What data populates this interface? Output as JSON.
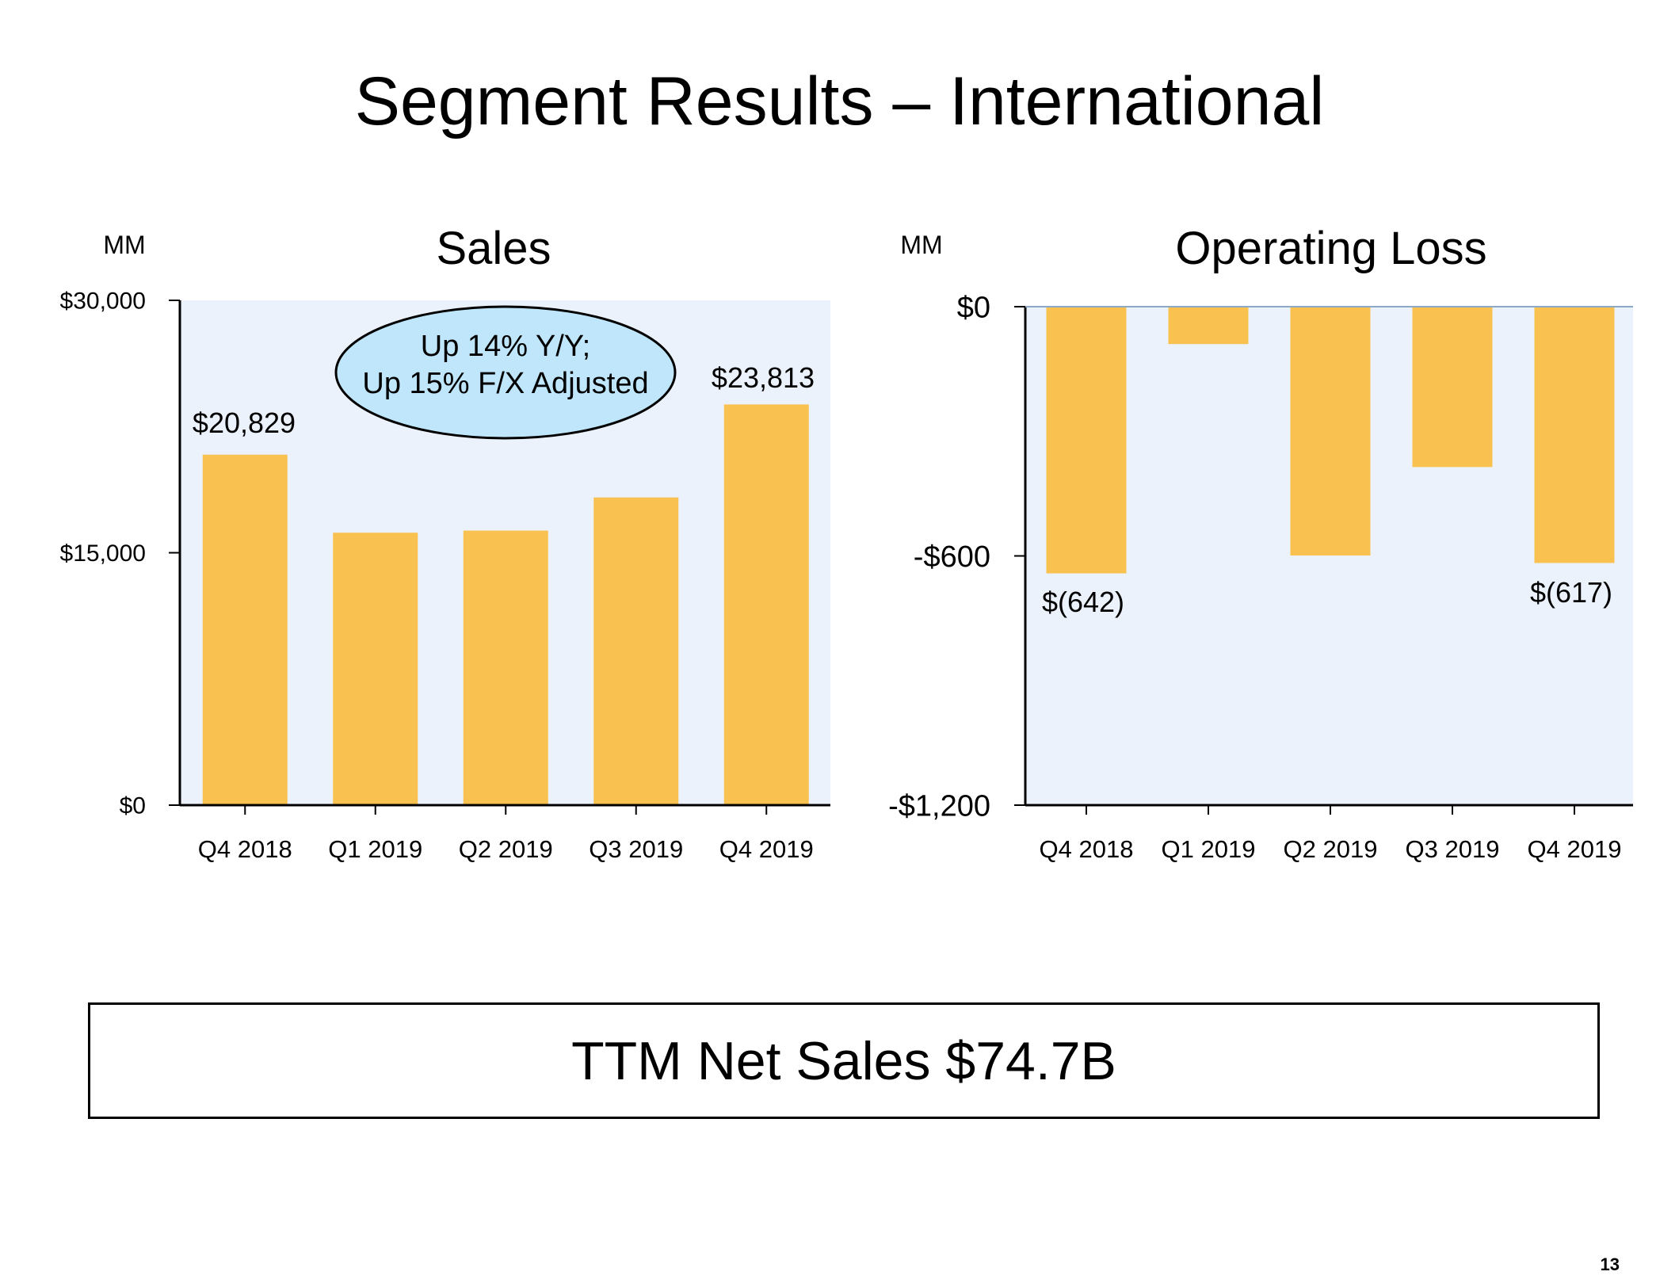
{
  "slide": {
    "title": "Segment Results – International",
    "callout": [
      "Up 14% Y/Y;",
      "Up 15% F/X Adjusted"
    ],
    "summary": "TTM Net Sales $74.7B",
    "page_number": "13"
  },
  "colors": {
    "bar": "#F9C150",
    "plot_background": "#EBF2FC",
    "callout_fill": "#BFE6FB",
    "axis": "#000000"
  },
  "chart_data": [
    {
      "type": "bar",
      "title": "Sales",
      "unit_label": "MM",
      "categories": [
        "Q4 2018",
        "Q1 2019",
        "Q2 2019",
        "Q3 2019",
        "Q4 2019"
      ],
      "values": [
        20829,
        16192,
        16317,
        18286,
        23813
      ],
      "ylim": [
        0,
        30000
      ],
      "yticks": [
        0,
        15000,
        30000
      ],
      "ytick_labels": [
        "$0",
        "$15,000",
        "$30,000"
      ],
      "data_labels": [
        "$20,829",
        "",
        "",
        "",
        "$23,813"
      ],
      "grid": false
    },
    {
      "type": "bar",
      "title": "Operating Loss",
      "unit_label": "MM",
      "categories": [
        "Q4 2018",
        "Q1 2019",
        "Q2 2019",
        "Q3 2019",
        "Q4 2019"
      ],
      "values": [
        -642,
        -90,
        -599,
        -386,
        -617
      ],
      "ylim": [
        -1200,
        0
      ],
      "yticks": [
        0,
        -600,
        -1200
      ],
      "ytick_labels": [
        "$0",
        "-$600",
        "-$1,200"
      ],
      "data_labels": [
        "$(642)",
        "",
        "",
        "",
        "$(617)"
      ],
      "grid": false
    }
  ]
}
